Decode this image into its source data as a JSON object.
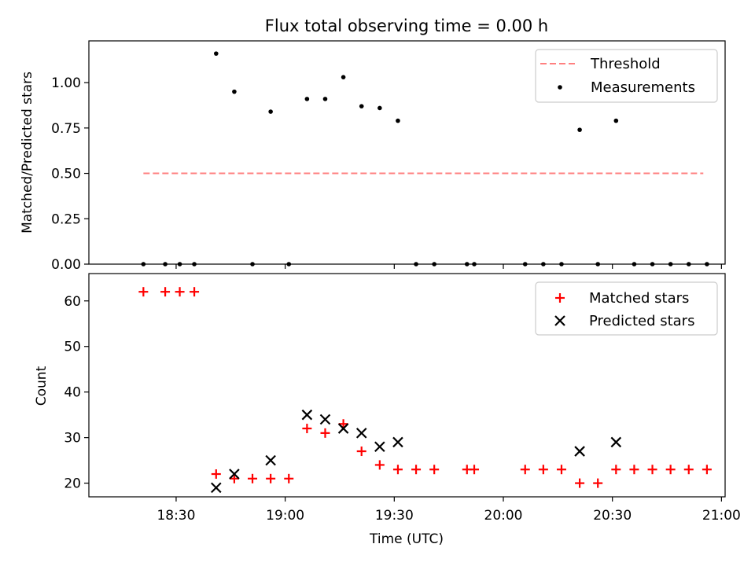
{
  "title": "Flux total observing time = 0.00 h",
  "colors": {
    "threshold": "#ff8080",
    "measurements": "#000000",
    "matched": "#ff0000",
    "predicted": "#000000"
  },
  "chart_data": [
    {
      "type": "scatter",
      "panel": "top",
      "title": "Flux total observing time = 0.00 h",
      "xlabel": "",
      "ylabel": "Matched/Predicted stars",
      "xlim_minutes_utc": [
        1086,
        1261
      ],
      "ylim": [
        0,
        1.23
      ],
      "yticks": [
        0.0,
        0.25,
        0.5,
        0.75,
        1.0
      ],
      "ytick_labels": [
        "0.00",
        "0.25",
        "0.50",
        "0.75",
        "1.00"
      ],
      "legend": {
        "position": "top-right",
        "entries": [
          "Threshold",
          "Measurements"
        ]
      },
      "series": [
        {
          "name": "Threshold",
          "style": "dashed-line",
          "x": [
            "18:21",
            "20:55"
          ],
          "x_minutes": [
            1101,
            1255
          ],
          "y": [
            0.5,
            0.5
          ]
        },
        {
          "name": "Measurements",
          "style": "dot",
          "x": [
            "18:21",
            "18:27",
            "18:31",
            "18:35",
            "18:41",
            "18:46",
            "18:51",
            "18:56",
            "19:01",
            "19:06",
            "19:11",
            "19:16",
            "19:21",
            "19:26",
            "19:31",
            "19:36",
            "19:41",
            "19:50",
            "19:52",
            "20:06",
            "20:11",
            "20:16",
            "20:21",
            "20:26",
            "20:31",
            "20:36",
            "20:41",
            "20:46",
            "20:51",
            "20:56"
          ],
          "x_minutes": [
            1101,
            1107,
            1111,
            1115,
            1121,
            1126,
            1131,
            1136,
            1141,
            1146,
            1151,
            1156,
            1161,
            1166,
            1171,
            1176,
            1181,
            1190,
            1192,
            1206,
            1211,
            1216,
            1221,
            1226,
            1231,
            1236,
            1241,
            1246,
            1251,
            1256
          ],
          "y": [
            0,
            0,
            0,
            0,
            1.16,
            0.95,
            0,
            0.84,
            0,
            0.91,
            0.91,
            1.03,
            0.87,
            0.86,
            0.79,
            0,
            0,
            0,
            0,
            0,
            0,
            0,
            0.74,
            0,
            0.79,
            0,
            0,
            0,
            0,
            0
          ]
        }
      ]
    },
    {
      "type": "scatter",
      "panel": "bottom",
      "xlabel": "Time (UTC)",
      "ylabel": "Count",
      "xlim_minutes_utc": [
        1086,
        1261
      ],
      "ylim": [
        17,
        66
      ],
      "yticks": [
        20,
        30,
        40,
        50,
        60
      ],
      "xticks": [
        "18:30",
        "19:00",
        "19:30",
        "20:00",
        "20:30",
        "21:00"
      ],
      "xticks_minutes": [
        1110,
        1140,
        1170,
        1200,
        1230,
        1260
      ],
      "legend": {
        "position": "top-right",
        "entries": [
          "Matched stars",
          "Predicted stars"
        ]
      },
      "series": [
        {
          "name": "Matched stars",
          "marker": "plus",
          "x": [
            "18:21",
            "18:27",
            "18:31",
            "18:35",
            "18:41",
            "18:46",
            "18:51",
            "18:56",
            "19:01",
            "19:06",
            "19:11",
            "19:16",
            "19:21",
            "19:26",
            "19:31",
            "19:36",
            "19:41",
            "19:50",
            "19:52",
            "20:06",
            "20:11",
            "20:16",
            "20:21",
            "20:26",
            "20:31",
            "20:36",
            "20:41",
            "20:46",
            "20:51",
            "20:56"
          ],
          "x_minutes": [
            1101,
            1107,
            1111,
            1115,
            1121,
            1126,
            1131,
            1136,
            1141,
            1146,
            1151,
            1156,
            1161,
            1166,
            1171,
            1176,
            1181,
            1190,
            1192,
            1206,
            1211,
            1216,
            1221,
            1226,
            1231,
            1236,
            1241,
            1246,
            1251,
            1256
          ],
          "y": [
            62,
            62,
            62,
            62,
            22,
            21,
            21,
            21,
            21,
            32,
            31,
            33,
            27,
            24,
            23,
            23,
            23,
            23,
            23,
            23,
            23,
            23,
            20,
            20,
            23,
            23,
            23,
            23,
            23,
            23
          ]
        },
        {
          "name": "Predicted stars",
          "marker": "x",
          "x": [
            "18:41",
            "18:46",
            "18:56",
            "19:06",
            "19:11",
            "19:16",
            "19:21",
            "19:26",
            "19:31",
            "20:21",
            "20:31"
          ],
          "x_minutes": [
            1121,
            1126,
            1136,
            1146,
            1151,
            1156,
            1161,
            1166,
            1171,
            1221,
            1231
          ],
          "y": [
            19,
            22,
            25,
            35,
            34,
            32,
            31,
            28,
            29,
            27,
            29
          ]
        }
      ]
    }
  ]
}
